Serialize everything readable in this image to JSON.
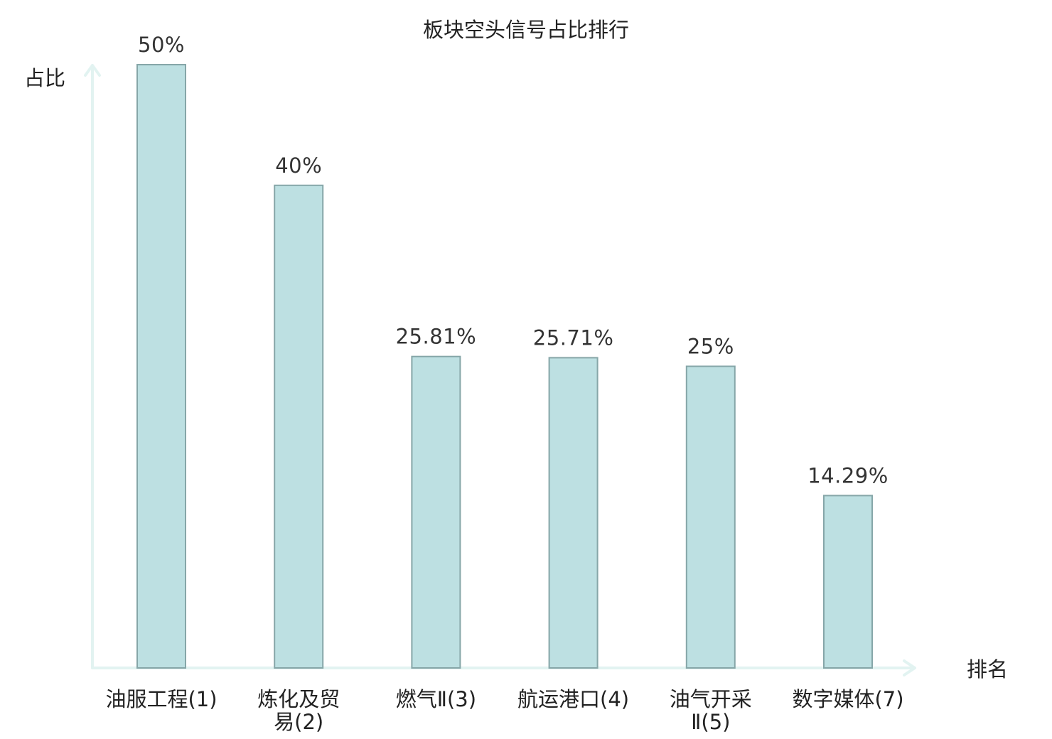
{
  "chart_data": {
    "type": "bar",
    "title": "板块空头信号占比排行",
    "xlabel": "排名",
    "ylabel": "占比",
    "ylim": [
      0,
      50
    ],
    "grid": false,
    "categories": [
      [
        "油服工程(1)"
      ],
      [
        "炼化及贸",
        "易(2)"
      ],
      [
        "燃气Ⅱ(3)"
      ],
      [
        "航运港口(4)"
      ],
      [
        "油气开采",
        "Ⅱ(5)"
      ],
      [
        "数字媒体(7)"
      ]
    ],
    "values": [
      50,
      40,
      25.81,
      25.71,
      25,
      14.29
    ],
    "value_labels": [
      "50%",
      "40%",
      "25.81%",
      "25.71%",
      "25%",
      "14.29%"
    ],
    "highlight_index": 5
  },
  "colors": {
    "bar_fill": "#bde0e2",
    "bar_stroke": "#86a6a8",
    "axis": "#e2f3f1",
    "text": "#222222",
    "highlight_text": "#e00000"
  }
}
